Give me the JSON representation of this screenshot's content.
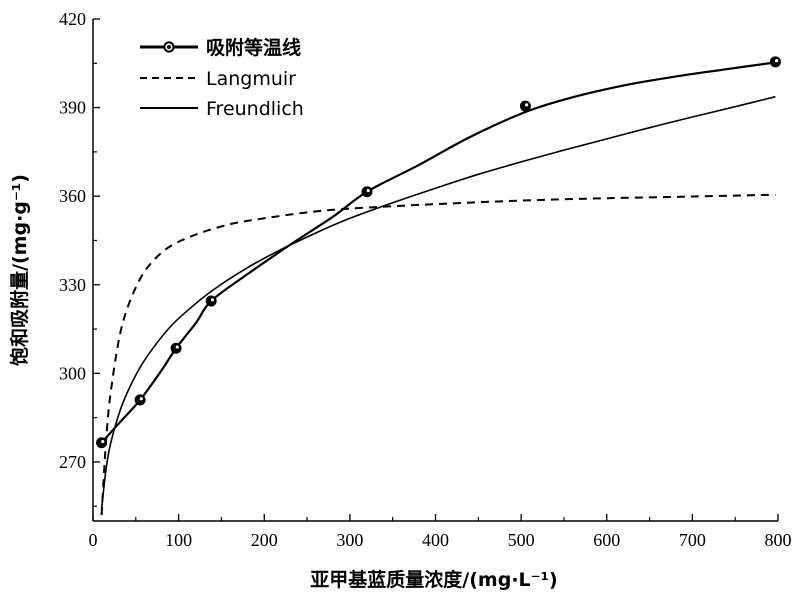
{
  "chart_data": {
    "type": "line",
    "xlabel": "亚甲基蓝质量浓度/(mg·L⁻¹)",
    "ylabel": "饱和吸附量/(mg·g⁻¹)",
    "xlim": [
      0,
      800
    ],
    "ylim": [
      250,
      420
    ],
    "xticks": [
      0,
      100,
      200,
      300,
      400,
      500,
      600,
      700,
      800
    ],
    "yticks": [
      270,
      300,
      330,
      360,
      390,
      420
    ],
    "grid": false,
    "legend_position": "top-left",
    "series": [
      {
        "name": "吸附等温线",
        "kind": "line-with-markers",
        "x": [
          10,
          55,
          97,
          138,
          320,
          505,
          797
        ],
        "y": [
          276.5,
          291,
          308.5,
          324.5,
          361.5,
          390.5,
          405.5
        ]
      },
      {
        "name": "Langmuir",
        "kind": "dashed-line",
        "x": [
          10,
          15,
          20,
          30,
          40,
          55,
          70,
          90,
          120,
          160,
          200,
          250,
          300,
          400,
          500,
          600,
          700,
          797
        ],
        "y": [
          252,
          276,
          292,
          311,
          322,
          332,
          338,
          343,
          347,
          350.5,
          352.5,
          354.5,
          355.8,
          357.3,
          358.5,
          359.3,
          359.9,
          360.5
        ]
      },
      {
        "name": "Freundlich",
        "kind": "solid-line",
        "x": [
          10,
          15,
          20,
          30,
          40,
          55,
          70,
          90,
          110,
          140,
          180,
          220,
          260,
          300,
          350,
          400,
          450,
          500,
          550,
          600,
          650,
          700,
          750,
          797
        ],
        "y": [
          254,
          267,
          275.5,
          286,
          293.5,
          302,
          308.5,
          315.7,
          321.2,
          328.2,
          335.7,
          342,
          347.5,
          352.5,
          357.8,
          362.7,
          367.4,
          371.6,
          375.6,
          379.4,
          383.2,
          386.8,
          390.3,
          393.7
        ]
      },
      {
        "name": "",
        "kind": "smooth-fit-through-markers",
        "x": [
          10,
          30,
          55,
          80,
          97,
          120,
          138,
          180,
          230,
          280,
          320,
          380,
          440,
          505,
          560,
          620,
          680,
          740,
          797
        ],
        "y": [
          276.5,
          283,
          291,
          301,
          308.5,
          317,
          324.5,
          333.5,
          343.5,
          353,
          361.5,
          370.5,
          380,
          388.5,
          393.5,
          397.5,
          400.5,
          403,
          405.3
        ]
      }
    ]
  }
}
